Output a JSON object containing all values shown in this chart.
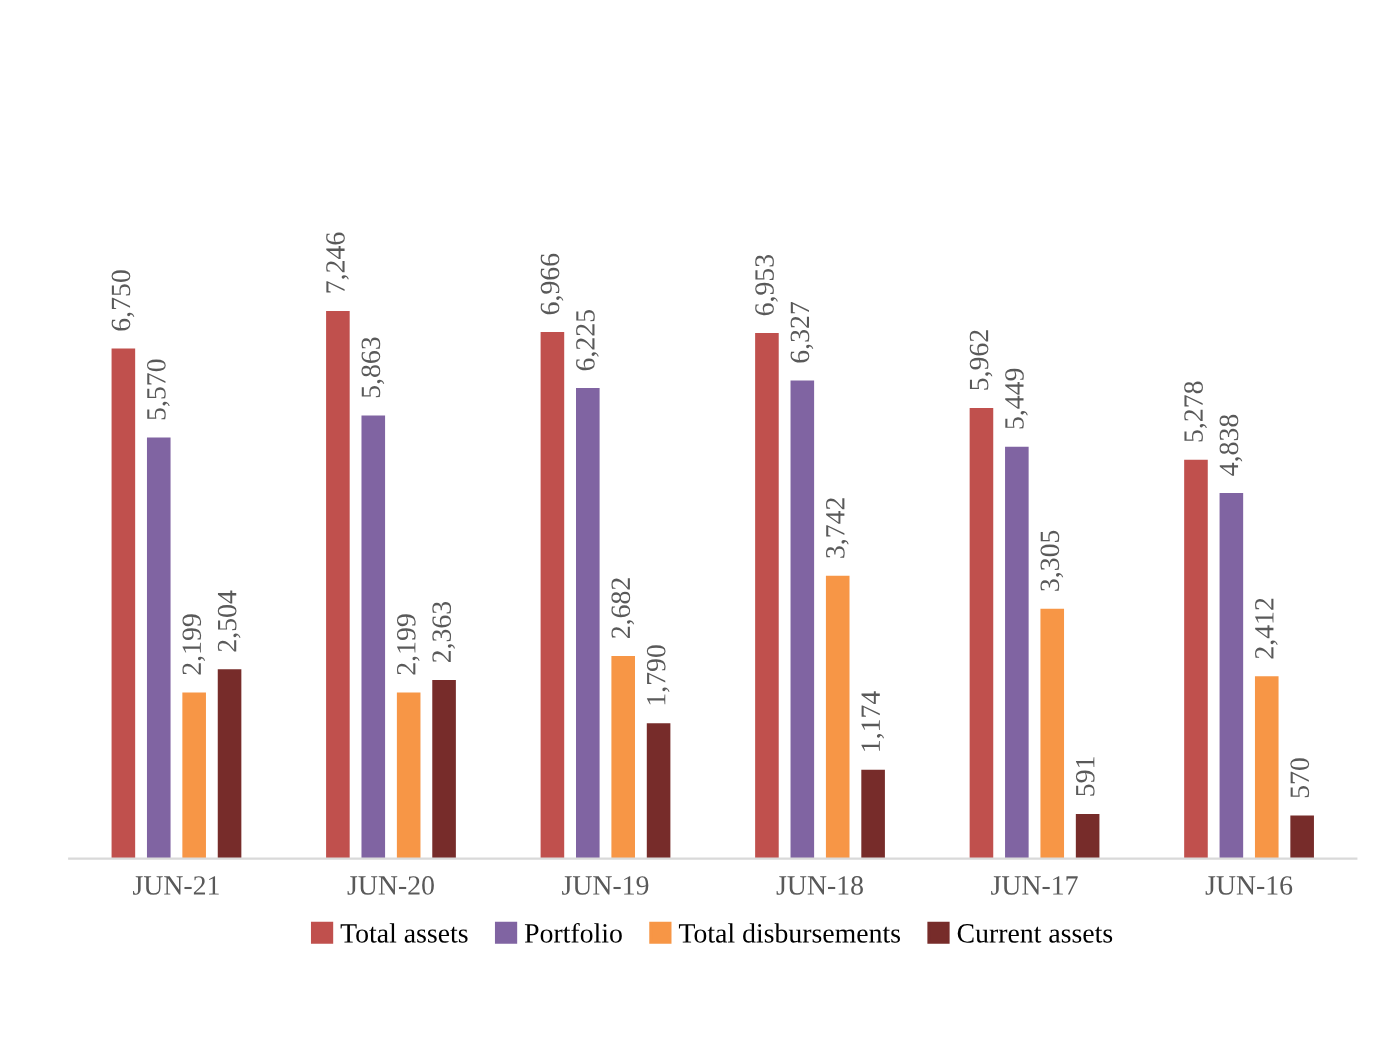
{
  "chart_data": {
    "type": "bar",
    "categories": [
      "JUN-21",
      "JUN-20",
      "JUN-19",
      "JUN-18",
      "JUN-17",
      "JUN-16"
    ],
    "series": [
      {
        "name": "Total assets",
        "color": "#c0504d",
        "values": [
          6750,
          7246,
          6966,
          6953,
          5962,
          5278
        ],
        "value_labels": [
          "6,750",
          "7,246",
          "6,966",
          "6,953",
          "5,962",
          "5,278"
        ]
      },
      {
        "name": "Portfolio",
        "color": "#8064a2",
        "values": [
          5570,
          5863,
          6225,
          6327,
          5449,
          4838
        ],
        "value_labels": [
          "5,570",
          "5,863",
          "6,225",
          "6,327",
          "5,449",
          "4,838"
        ]
      },
      {
        "name": "Total disbursements",
        "color": "#f79646",
        "values": [
          2199,
          2199,
          2682,
          3742,
          3305,
          2412
        ],
        "value_labels": [
          "2,199",
          "2,199",
          "2,682",
          "3,742",
          "3,305",
          "2,412"
        ]
      },
      {
        "name": "Current assets",
        "color": "#772c2a",
        "values": [
          2504,
          2363,
          1790,
          1174,
          591,
          570
        ],
        "value_labels": [
          "2,504",
          "2,363",
          "1,790",
          "1,174",
          "591",
          "570"
        ]
      }
    ],
    "legend": "bottom",
    "grid": false
  }
}
